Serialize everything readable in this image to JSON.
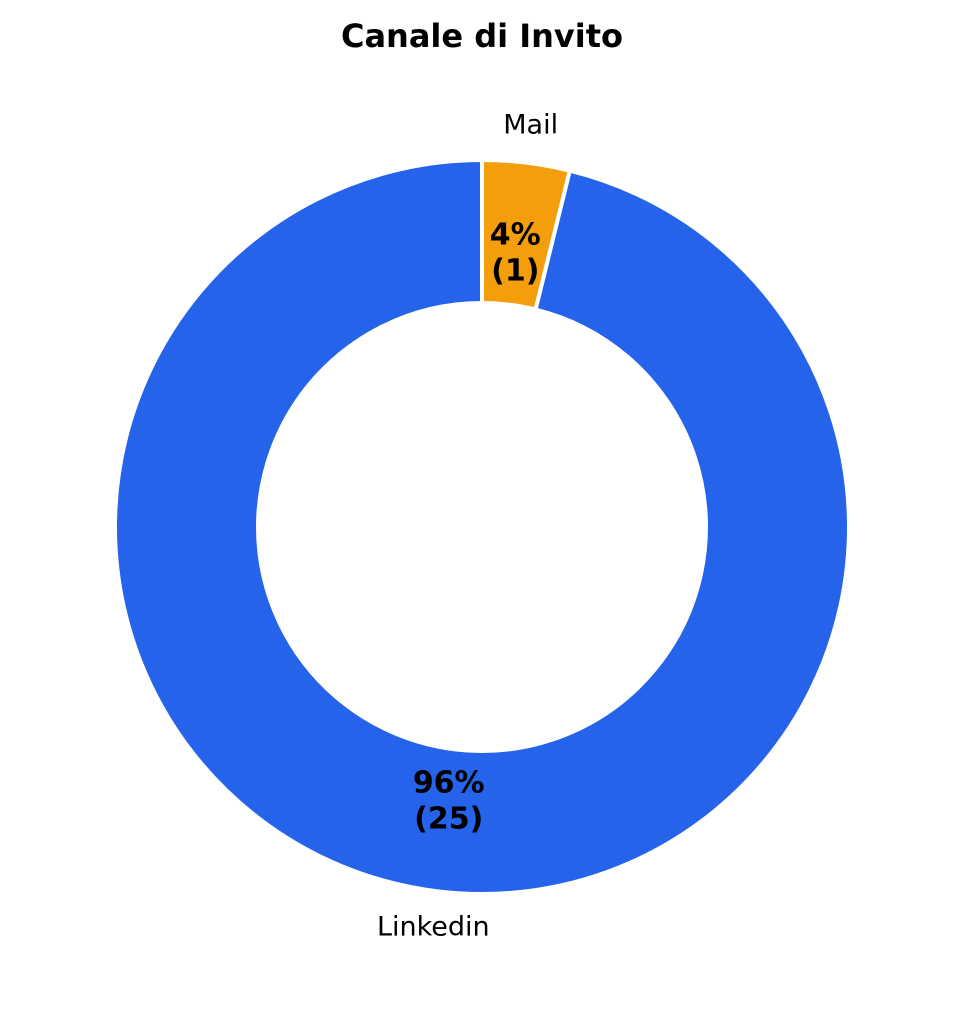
{
  "chart_data": {
    "type": "donut",
    "title": "Canale di Invito",
    "categories": [
      "Mail",
      "Linkedin"
    ],
    "values": [
      1,
      25
    ],
    "value_labels": [
      "(1)",
      "(25)"
    ],
    "percentages": [
      4,
      96
    ],
    "percentage_labels": [
      "4%",
      "96%"
    ],
    "colors": [
      "#f59e0b",
      "#2563eb"
    ],
    "start": "top",
    "direction": "clockwise"
  }
}
